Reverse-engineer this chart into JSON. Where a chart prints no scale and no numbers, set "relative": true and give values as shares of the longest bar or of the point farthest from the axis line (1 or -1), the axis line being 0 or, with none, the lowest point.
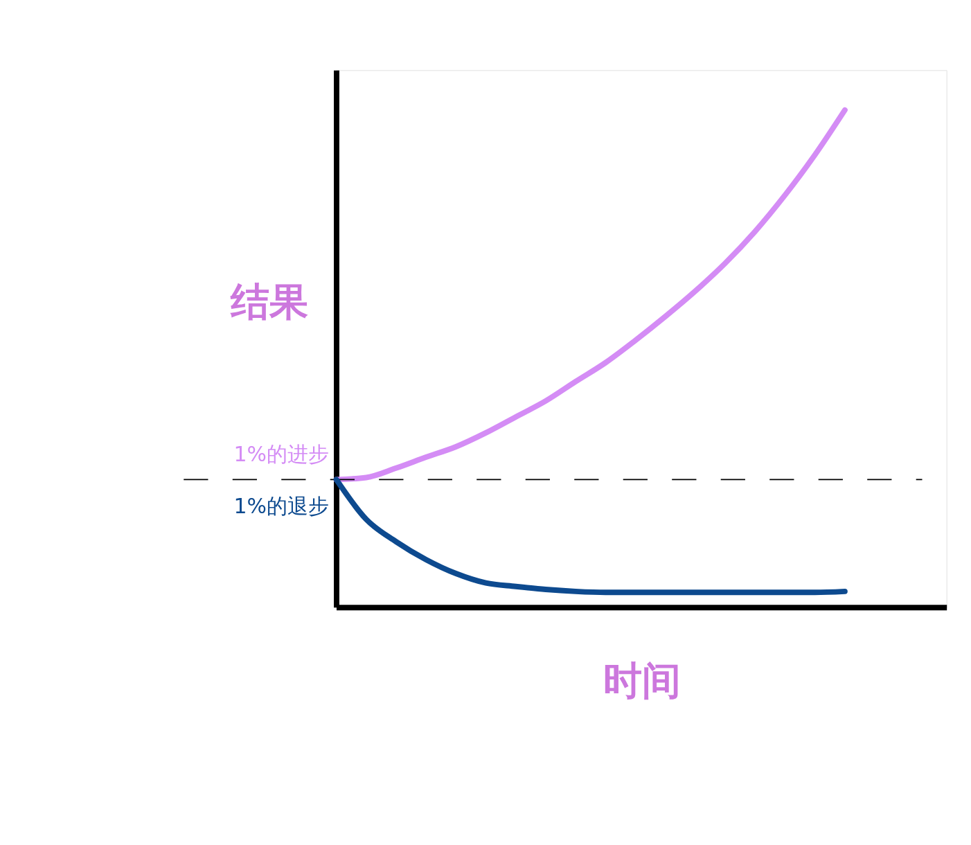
{
  "chart_data": {
    "type": "line",
    "relative": true,
    "xlabel": "时间",
    "ylabel": "结果",
    "categories": [
      null,
      null,
      null,
      null,
      null,
      null,
      null,
      null,
      null,
      null,
      null,
      null,
      null,
      null,
      null,
      null,
      null,
      null
    ],
    "series": [
      {
        "name": "1%的进步",
        "color": "#d48cf5",
        "values": [
          0.257,
          0.261,
          0.28,
          0.302,
          0.323,
          0.351,
          0.383,
          0.415,
          0.454,
          0.492,
          0.537,
          0.585,
          0.636,
          0.692,
          0.756,
          0.829,
          0.91,
          1
        ]
      },
      {
        "name": "1%的退步",
        "color": "#0d4a8f",
        "values": [
          0.257,
          0.177,
          0.132,
          0.096,
          0.068,
          0.049,
          0.042,
          0.036,
          0.032,
          0.03,
          0.03,
          0.03,
          0.03,
          0.03,
          0.03,
          0.03,
          0.03,
          0.032
        ]
      }
    ],
    "ref_lines": [
      {
        "axis": "y",
        "value": 0.257,
        "line_style": "dashed",
        "color": "#000000"
      }
    ]
  }
}
